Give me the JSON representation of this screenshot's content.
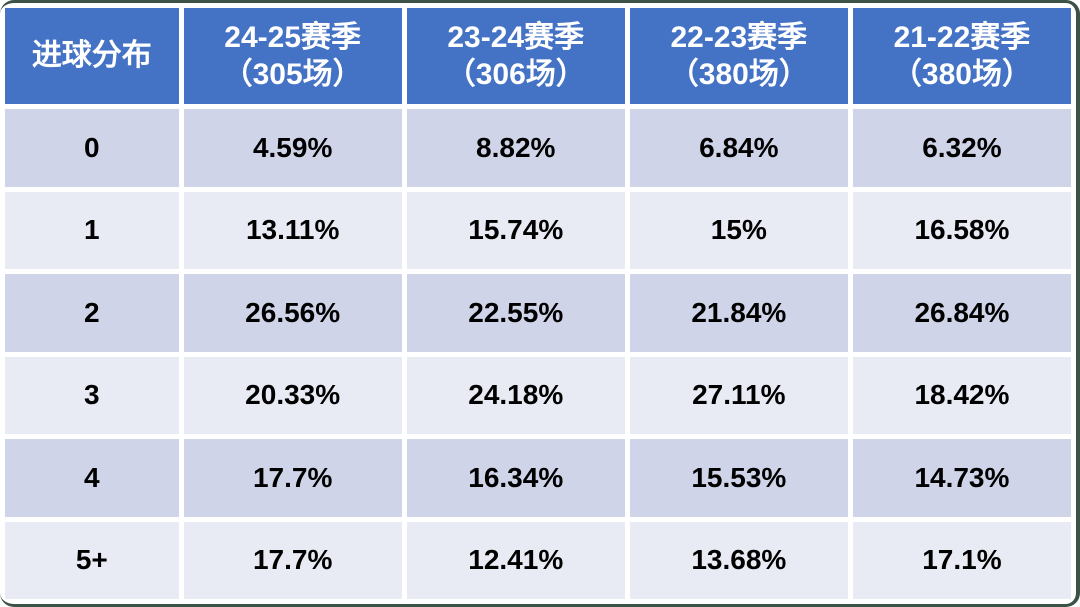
{
  "table": {
    "corner_label": "进球分布",
    "seasons": [
      {
        "line1": "24-25赛季",
        "line2": "（305场）"
      },
      {
        "line1": "23-24赛季",
        "line2": "（306场）"
      },
      {
        "line1": "22-23赛季",
        "line2": "（380场）"
      },
      {
        "line1": "21-22赛季",
        "line2": "（380场）"
      }
    ],
    "rows": [
      {
        "goals": "0",
        "values": [
          "4.59%",
          "8.82%",
          "6.84%",
          "6.32%"
        ]
      },
      {
        "goals": "1",
        "values": [
          "13.11%",
          "15.74%",
          "15%",
          "16.58%"
        ]
      },
      {
        "goals": "2",
        "values": [
          "26.56%",
          "22.55%",
          "21.84%",
          "26.84%"
        ]
      },
      {
        "goals": "3",
        "values": [
          "20.33%",
          "24.18%",
          "27.11%",
          "18.42%"
        ]
      },
      {
        "goals": "4",
        "values": [
          "17.7%",
          "16.34%",
          "15.53%",
          "14.73%"
        ]
      },
      {
        "goals": "5+",
        "values": [
          "17.7%",
          "12.41%",
          "13.68%",
          "17.1%"
        ]
      }
    ]
  },
  "colors": {
    "header_bg": "#4472C4",
    "header_text": "#FFFFFF",
    "row_band_dark": "#CFD4E8",
    "row_band_light": "#E9EBF4",
    "body_text": "#000000",
    "frame_line": "#3C5246",
    "gridline": "#FFFFFF"
  },
  "chart_data": {
    "type": "table",
    "title": "进球分布",
    "columns": [
      "进球分布",
      "24-25赛季（305场）",
      "23-24赛季（306场）",
      "22-23赛季（380场）",
      "21-22赛季（380场）"
    ],
    "rows": [
      [
        "0",
        "4.59%",
        "8.82%",
        "6.84%",
        "6.32%"
      ],
      [
        "1",
        "13.11%",
        "15.74%",
        "15%",
        "16.58%"
      ],
      [
        "2",
        "26.56%",
        "22.55%",
        "21.84%",
        "26.84%"
      ],
      [
        "3",
        "20.33%",
        "24.18%",
        "27.11%",
        "18.42%"
      ],
      [
        "4",
        "17.7%",
        "16.34%",
        "15.53%",
        "14.73%"
      ],
      [
        "5+",
        "17.7%",
        "12.41%",
        "13.68%",
        "17.1%"
      ]
    ],
    "layout_hints": {
      "header_style": "blue banner, white bold text, two-line season headers",
      "row_banding": [
        "dark",
        "light",
        "dark",
        "light",
        "dark",
        "light"
      ],
      "grid": "white separators between all cells"
    }
  }
}
